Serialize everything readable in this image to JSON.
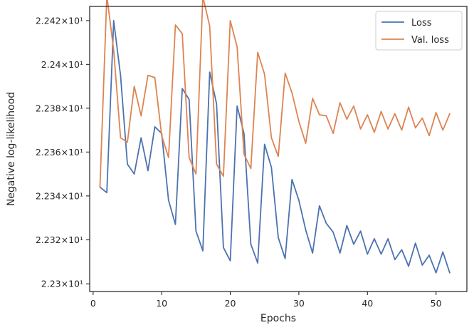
{
  "chart_data": {
    "type": "line",
    "xlabel": "Epochs",
    "ylabel": "Negative log-likelihood",
    "yscale": "log",
    "xlim": [
      -0.5,
      54.5
    ],
    "ylim": [
      22.2965,
      22.4265
    ],
    "xticks": [
      0,
      10,
      20,
      30,
      40,
      50
    ],
    "yticks": [
      {
        "value": 22.3,
        "label": "2.23×10¹"
      },
      {
        "value": 22.32,
        "label": "2.232×10¹"
      },
      {
        "value": 22.34,
        "label": "2.234×10¹"
      },
      {
        "value": 22.36,
        "label": "2.236×10¹"
      },
      {
        "value": 22.38,
        "label": "2.238×10¹"
      },
      {
        "value": 22.4,
        "label": "2.24×10¹"
      },
      {
        "value": 22.42,
        "label": "2.242×10¹"
      }
    ],
    "grid": false,
    "legend_position": "top-right",
    "x": [
      1,
      2,
      3,
      4,
      5,
      6,
      7,
      8,
      9,
      10,
      11,
      12,
      13,
      14,
      15,
      16,
      17,
      18,
      19,
      20,
      21,
      22,
      23,
      24,
      25,
      26,
      27,
      28,
      29,
      30,
      31,
      32,
      33,
      34,
      35,
      36,
      37,
      38,
      39,
      40,
      41,
      42,
      43,
      44,
      45,
      46,
      47,
      48,
      49,
      50,
      51,
      52
    ],
    "series": [
      {
        "name": "Loss",
        "color": "#4c72b0",
        "values": [
          22.344,
          22.3415,
          22.42,
          22.395,
          22.3545,
          22.35,
          22.3665,
          22.3515,
          22.3715,
          22.3685,
          22.338,
          22.327,
          22.389,
          22.384,
          22.324,
          22.315,
          22.3965,
          22.382,
          22.3165,
          22.3105,
          22.381,
          22.3685,
          22.318,
          22.3095,
          22.3635,
          22.353,
          22.321,
          22.3115,
          22.3475,
          22.338,
          22.3245,
          22.314,
          22.3355,
          22.3275,
          22.3235,
          22.314,
          22.3265,
          22.318,
          22.324,
          22.3135,
          22.3205,
          22.3135,
          22.3205,
          22.311,
          22.3155,
          22.308,
          22.3185,
          22.3085,
          22.313,
          22.305,
          22.3145,
          22.305
        ]
      },
      {
        "name": "Val. loss",
        "color": "#dd8452",
        "values": [
          22.344,
          22.4315,
          22.4065,
          22.3665,
          22.3645,
          22.39,
          22.3765,
          22.395,
          22.394,
          22.3675,
          22.3575,
          22.418,
          22.414,
          22.3575,
          22.35,
          22.431,
          22.4175,
          22.3545,
          22.349,
          22.42,
          22.408,
          22.359,
          22.3525,
          22.4055,
          22.3955,
          22.3665,
          22.358,
          22.396,
          22.387,
          22.374,
          22.364,
          22.3845,
          22.377,
          22.3765,
          22.3685,
          22.3825,
          22.375,
          22.381,
          22.3705,
          22.377,
          22.369,
          22.3785,
          22.3705,
          22.3775,
          22.37,
          22.3805,
          22.371,
          22.3755,
          22.3675,
          22.378,
          22.37,
          22.3775
        ]
      }
    ]
  }
}
